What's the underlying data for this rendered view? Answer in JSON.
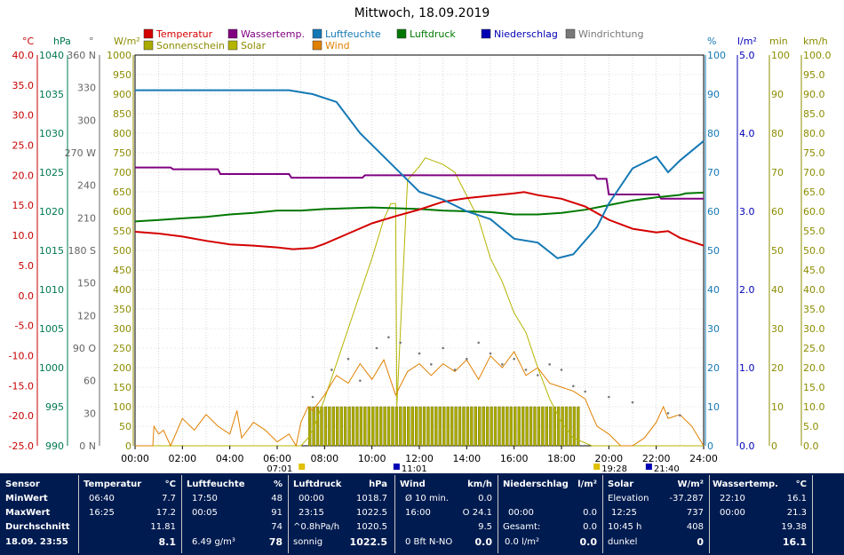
{
  "chart_data": {
    "type": "line",
    "title": "Mittwoch, 18.09.2019",
    "x_ticks": [
      "00:00",
      "02:00",
      "04:00",
      "06:00",
      "08:00",
      "10:00",
      "12:00",
      "14:00",
      "16:00",
      "18:00",
      "20:00",
      "22:00",
      "24:00"
    ],
    "x_range_hours": [
      0,
      24
    ],
    "grid": true,
    "legend": [
      {
        "name": "Temperatur",
        "color": "#d40000"
      },
      {
        "name": "Wassertemp.",
        "color": "#800080"
      },
      {
        "name": "Luftfeuchte",
        "color": "#1478b4"
      },
      {
        "name": "Luftdruck",
        "color": "#007800"
      },
      {
        "name": "Niederschlag",
        "color": "#0000b4"
      },
      {
        "name": "Windrichtung",
        "color": "#787878"
      },
      {
        "name": "Sonnenschein",
        "color": "#aaaa00"
      },
      {
        "name": "Solar",
        "color": "#b4b400"
      },
      {
        "name": "Wind",
        "color": "#e08000"
      }
    ],
    "axes": [
      {
        "unit": "°C",
        "range": [
          -25,
          40
        ],
        "ticks": [
          "40.0",
          "35.0",
          "30.0",
          "25.0",
          "20.0",
          "15.0",
          "10.0",
          "5.0",
          "0.0",
          "-5.0",
          "-10.0",
          "-15.0",
          "-20.0",
          "-25.0"
        ],
        "color": "#c80000"
      },
      {
        "unit": "hPa",
        "range": [
          990,
          1040
        ],
        "ticks": [
          "1040",
          "1035",
          "1030",
          "1025",
          "1020",
          "1015",
          "1010",
          "1005",
          "1000",
          "995",
          "990"
        ],
        "color": "#007850"
      },
      {
        "unit": "°",
        "range": [
          0,
          360
        ],
        "ticks": [
          "360 N",
          "330",
          "300",
          "270 W",
          "240",
          "210",
          "180 S",
          "150",
          "120",
          "90 O",
          "60",
          "30",
          "0 N"
        ],
        "color": "#646464"
      },
      {
        "unit": "W/m²",
        "range": [
          0,
          1000
        ],
        "ticks": [
          "1000",
          "950",
          "900",
          "850",
          "800",
          "750",
          "700",
          "650",
          "600",
          "550",
          "500",
          "450",
          "400",
          "350",
          "300",
          "250",
          "200",
          "150",
          "100",
          "50",
          "0"
        ],
        "color": "#8c8c00"
      },
      {
        "unit": "%",
        "range": [
          0,
          100
        ],
        "ticks": [
          "100",
          "90",
          "80",
          "70",
          "60",
          "50",
          "40",
          "30",
          "20",
          "10",
          "0"
        ],
        "color": "#1478b4"
      },
      {
        "unit": "l/m²",
        "range": [
          0,
          5
        ],
        "ticks": [
          "5.0",
          "4.0",
          "3.0",
          "2.0",
          "1.0",
          "0.0"
        ],
        "color": "#0000b4"
      },
      {
        "unit": "min",
        "range": [
          0,
          100
        ],
        "ticks": [
          "100",
          "90",
          "80",
          "70",
          "60",
          "50",
          "40",
          "30",
          "20",
          "10",
          "0"
        ],
        "color": "#8c8c00"
      },
      {
        "unit": "km/h",
        "range": [
          0,
          100
        ],
        "ticks": [
          "100.0",
          "95.0",
          "90.0",
          "85.0",
          "80.0",
          "75.0",
          "70.0",
          "65.0",
          "60.0",
          "55.0",
          "50.0",
          "45.0",
          "40.0",
          "35.0",
          "30.0",
          "25.0",
          "20.0",
          "15.0",
          "10.0",
          "5.0",
          "0.0"
        ],
        "color": "#8c8c00"
      }
    ],
    "series": [
      {
        "name": "Temperatur",
        "axis": "°C",
        "color": "#d40000",
        "x": [
          0,
          1,
          2,
          3,
          4,
          5,
          6,
          6.67,
          7.5,
          8,
          9,
          10,
          11,
          12,
          13,
          14,
          15,
          16,
          16.42,
          17,
          18,
          19,
          20,
          21,
          22,
          22.5,
          23,
          24
        ],
        "y": [
          10.6,
          10.3,
          9.8,
          9.1,
          8.5,
          8.3,
          8.0,
          7.7,
          7.9,
          8.6,
          10.3,
          12.0,
          13.2,
          14.3,
          15.6,
          16.2,
          16.6,
          17.0,
          17.2,
          16.7,
          16.1,
          14.8,
          12.6,
          11.1,
          10.5,
          10.7,
          9.6,
          8.3
        ]
      },
      {
        "name": "Wassertemp.",
        "axis": "°C",
        "color": "#800080",
        "x": [
          0,
          1.5,
          1.6,
          3.5,
          3.6,
          6.5,
          6.6,
          9.6,
          9.7,
          19.4,
          19.5,
          19.9,
          20.0,
          22.1,
          22.2,
          24
        ],
        "y": [
          21.3,
          21.3,
          21.0,
          21.0,
          20.2,
          20.2,
          19.6,
          19.6,
          20.0,
          20.0,
          19.4,
          19.4,
          16.8,
          16.8,
          16.1,
          16.1
        ]
      },
      {
        "name": "Luftfeuchte",
        "axis": "%",
        "color": "#1478b4",
        "x": [
          0,
          3,
          5,
          6.5,
          7.5,
          8.5,
          9.5,
          10,
          11,
          12,
          13,
          14,
          15,
          16,
          17,
          17.83,
          18.5,
          19.5,
          20,
          21,
          22,
          22.5,
          23,
          24
        ],
        "y": [
          91,
          91,
          91,
          91,
          90,
          88,
          80,
          77,
          71,
          65,
          63,
          60,
          58,
          53,
          52,
          48,
          49,
          56,
          62,
          71,
          74,
          70,
          73,
          78
        ]
      },
      {
        "name": "Luftdruck",
        "axis": "hPa",
        "color": "#007800",
        "x": [
          0,
          1,
          2,
          3,
          4,
          5,
          6,
          7,
          8,
          9,
          10,
          11,
          12,
          13,
          14,
          15,
          16,
          17,
          18,
          19,
          20,
          21,
          22,
          23,
          23.25,
          24
        ],
        "y": [
          1018.7,
          1018.9,
          1019.1,
          1019.3,
          1019.6,
          1019.8,
          1020.1,
          1020.1,
          1020.3,
          1020.4,
          1020.5,
          1020.4,
          1020.3,
          1020.1,
          1020.0,
          1019.9,
          1019.6,
          1019.6,
          1019.8,
          1020.2,
          1020.8,
          1021.4,
          1021.8,
          1022.1,
          1022.3,
          1022.4
        ]
      },
      {
        "name": "Solar",
        "axis": "W/m²",
        "color": "#b4b400",
        "x": [
          0,
          7.01,
          7.3,
          7.5,
          8,
          8.5,
          9,
          9.5,
          10,
          10.5,
          10.8,
          11.0,
          11.05,
          11.5,
          12,
          12.25,
          13,
          13.5,
          14,
          14.5,
          15,
          15.5,
          16,
          16.5,
          17,
          17.5,
          18,
          18.5,
          19.28,
          24
        ],
        "y": [
          0,
          0,
          20,
          40,
          120,
          210,
          300,
          390,
          480,
          580,
          620,
          620,
          100,
          680,
          715,
          737,
          720,
          700,
          640,
          580,
          480,
          420,
          340,
          290,
          200,
          120,
          60,
          20,
          0,
          0
        ]
      },
      {
        "name": "Wind",
        "axis": "km/h",
        "color": "#e08000",
        "x": [
          0,
          0.75,
          0.8,
          1,
          1.2,
          1.5,
          2,
          2.5,
          3,
          3.5,
          4,
          4.3,
          4.5,
          5,
          5.5,
          6,
          6.5,
          6.8,
          7,
          7.3,
          7.5,
          8,
          8.5,
          9,
          9.5,
          10,
          10.5,
          11,
          11.5,
          12,
          12.5,
          13,
          13.5,
          14,
          14.5,
          15,
          15.5,
          16,
          16.5,
          17,
          17.5,
          18,
          18.5,
          19,
          19.28,
          19.5,
          20,
          20.5,
          21,
          21.5,
          22,
          22.3,
          22.5,
          23,
          23.5,
          24
        ],
        "y": [
          0,
          0,
          5,
          3,
          4,
          0,
          7,
          4,
          8,
          5,
          3,
          9,
          2,
          6,
          4,
          1,
          3,
          0,
          6,
          10,
          9,
          13,
          18,
          16,
          21,
          17,
          22,
          13,
          19,
          21,
          18,
          21,
          19,
          22,
          17,
          23,
          20,
          24.1,
          18,
          20,
          16,
          15,
          14,
          12,
          8,
          5,
          3,
          0,
          0,
          2,
          6,
          10,
          7,
          8,
          5,
          0
        ]
      }
    ],
    "wind_direction_points_deg": [
      {
        "x": 7.5,
        "y": 45
      },
      {
        "x": 8.3,
        "y": 70
      },
      {
        "x": 9.0,
        "y": 80
      },
      {
        "x": 9.5,
        "y": 60
      },
      {
        "x": 10.2,
        "y": 90
      },
      {
        "x": 10.7,
        "y": 100
      },
      {
        "x": 11.2,
        "y": 95
      },
      {
        "x": 12.0,
        "y": 85
      },
      {
        "x": 12.5,
        "y": 75
      },
      {
        "x": 13.0,
        "y": 90
      },
      {
        "x": 13.5,
        "y": 70
      },
      {
        "x": 14.0,
        "y": 80
      },
      {
        "x": 14.5,
        "y": 95
      },
      {
        "x": 15.0,
        "y": 85
      },
      {
        "x": 15.5,
        "y": 75
      },
      {
        "x": 16.0,
        "y": 80
      },
      {
        "x": 16.5,
        "y": 70
      },
      {
        "x": 17.0,
        "y": 65
      },
      {
        "x": 17.5,
        "y": 75
      },
      {
        "x": 18.0,
        "y": 70
      },
      {
        "x": 18.5,
        "y": 55
      },
      {
        "x": 19.0,
        "y": 50
      },
      {
        "x": 20.0,
        "y": 45
      },
      {
        "x": 21.0,
        "y": 40
      },
      {
        "x": 22.5,
        "y": 30
      },
      {
        "x": 23.0,
        "y": 28
      }
    ],
    "sunshine_minutes": {
      "start_hour": 7.3,
      "end_hour": 18.7,
      "value_min": 10
    },
    "markers": [
      {
        "hour": 7.02,
        "label": "07:01"
      },
      {
        "hour": 11.02,
        "label": "11:01"
      },
      {
        "hour": 19.47,
        "label": "19:28"
      },
      {
        "hour": 21.67,
        "label": "21:40"
      }
    ]
  },
  "stats": {
    "sensor": {
      "title": "Sensor",
      "min": "MinWert",
      "max": "MaxWert",
      "avg": "Durchschnitt",
      "now": "18.09. 23:55"
    },
    "temperatur": {
      "title": "Temperatur",
      "unit": "°C",
      "min_time": "06:40",
      "min": "7.7",
      "max_time": "16:25",
      "max": "17.2",
      "avg": "11.81",
      "now": "8.1"
    },
    "luftfeuchte": {
      "title": "Luftfeuchte",
      "unit": "%",
      "min_time": "17:50",
      "min": "48",
      "max_time": "00:05",
      "max": "91",
      "avg": "74",
      "abs": "6.49 g/m³",
      "now": "78"
    },
    "luftdruck": {
      "title": "Luftdruck",
      "unit": "hPa",
      "min_time": "00:00",
      "min": "1018.7",
      "max_time": "23:15",
      "max": "1022.5",
      "trend": "^0.8hPa/h",
      "avg": "1020.5",
      "state": "sonnig",
      "now": "1022.5"
    },
    "wind": {
      "title": "Wind",
      "unit": "km/h",
      "r1_label": "Ø 10 min.",
      "r1": "0.0",
      "r2_time": "16:00",
      "r2": "O 24.1",
      "avg": "9.5",
      "bft": "0 Bft N-NO",
      "now": "0.0"
    },
    "niederschlag": {
      "title": "Niederschlag",
      "unit": "l/m²",
      "max_time": "00:00",
      "max": "0.0",
      "gesamt_label": "Gesamt:",
      "gesamt": "0.0",
      "rate": "0.0 l/m²",
      "now": "0.0"
    },
    "solar": {
      "title": "Solar",
      "unit": "W/m²",
      "elev_label": "Elevation",
      "elev": "-37.287",
      "max_time": "12:25",
      "max": "737",
      "dur": "10:45 h",
      "avg": "408",
      "state": "dunkel",
      "now": "0"
    },
    "wassertemp": {
      "title": "Wassertemp.",
      "unit": "°C",
      "min_time": "22:10",
      "min": "16.1",
      "max_time": "00:00",
      "max": "21.3",
      "avg": "19.38",
      "now": "16.1"
    }
  }
}
